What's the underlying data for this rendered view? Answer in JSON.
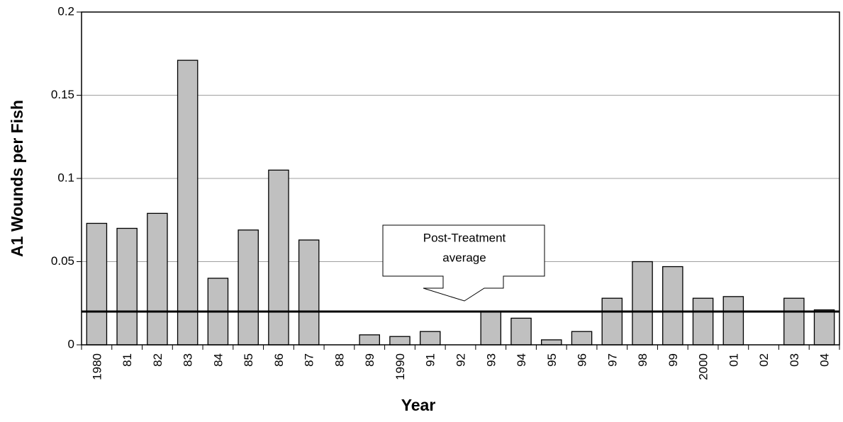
{
  "chart_data": {
    "type": "bar",
    "x_label": "Year",
    "y_label": "A1 Wounds per Fish",
    "categories": [
      "1980",
      "81",
      "82",
      "83",
      "84",
      "85",
      "86",
      "87",
      "88",
      "89",
      "1990",
      "91",
      "92",
      "93",
      "94",
      "95",
      "96",
      "97",
      "98",
      "99",
      "2000",
      "01",
      "02",
      "03",
      "04"
    ],
    "values": [
      0.073,
      0.07,
      0.079,
      0.171,
      0.04,
      0.069,
      0.105,
      0.063,
      0,
      0.006,
      0.005,
      0.008,
      0,
      0.02,
      0.016,
      0.003,
      0.008,
      0.028,
      0.05,
      0.047,
      0.028,
      0.029,
      0,
      0.028,
      0.021
    ],
    "color": "#c0c0c0",
    "ylim": [
      0,
      0.2
    ],
    "yticks": [
      0,
      0.05,
      0.1,
      0.15,
      0.2
    ],
    "grid": true,
    "average_line": 0.02,
    "annotation": [
      "Post-Treatment",
      "average"
    ]
  }
}
